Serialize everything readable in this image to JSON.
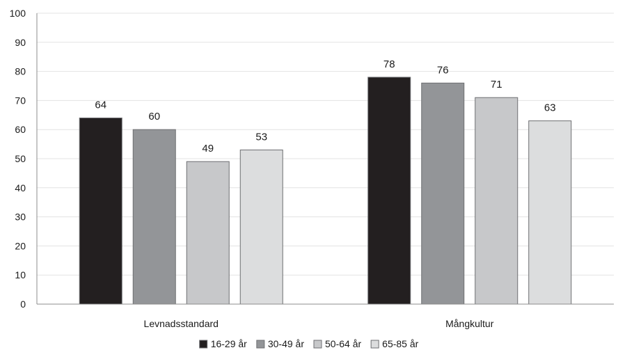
{
  "chart_data": {
    "type": "bar",
    "title": "",
    "xlabel": "",
    "ylabel": "",
    "ylim": [
      0,
      100
    ],
    "yticks": [
      0,
      10,
      20,
      30,
      40,
      50,
      60,
      70,
      80,
      90,
      100
    ],
    "grid": true,
    "legend_position": "bottom",
    "categories": [
      "Levnadsstandard",
      "Mångkultur"
    ],
    "series": [
      {
        "name": "16-29 år",
        "color": "#231f20",
        "values": [
          64,
          78
        ]
      },
      {
        "name": "30-49 år",
        "color": "#939598",
        "values": [
          60,
          76
        ]
      },
      {
        "name": "50-64 år",
        "color": "#c7c8ca",
        "values": [
          49,
          71
        ]
      },
      {
        "name": "65-85 år",
        "color": "#dcddde",
        "values": [
          53,
          63
        ]
      }
    ]
  }
}
